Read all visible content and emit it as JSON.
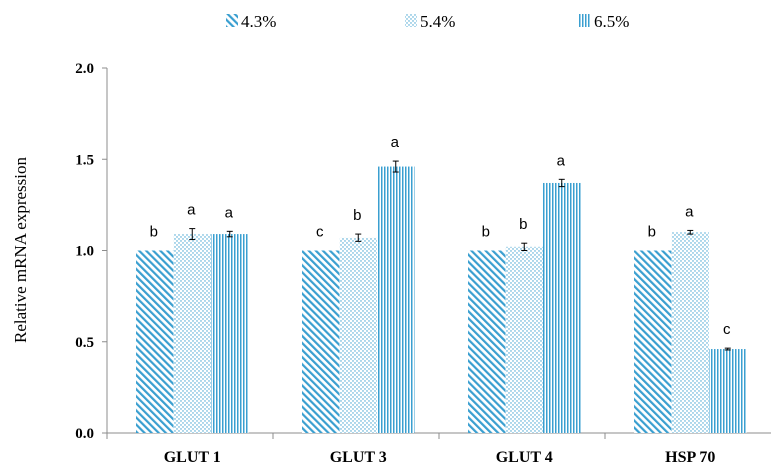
{
  "chart_data": {
    "type": "bar",
    "title": "",
    "xlabel": "",
    "ylabel": "Relative mRNA expression",
    "ylim": [
      0,
      2
    ],
    "yticks": [
      "0.0",
      "0.5",
      "1.0",
      "1.5",
      "2.0"
    ],
    "grid": false,
    "legend_position": "top",
    "categories": [
      "GLUT 1",
      "GLUT 3",
      "GLUT 4",
      "HSP 70"
    ],
    "series": [
      {
        "name": "4.3%",
        "pattern": "diagonal-stripes",
        "values": [
          1.0,
          1.0,
          1.0,
          1.0
        ],
        "errors": [
          0,
          0,
          0,
          0
        ],
        "letters": [
          "b",
          "c",
          "b",
          "b"
        ]
      },
      {
        "name": "5.4%",
        "pattern": "dots",
        "values": [
          1.09,
          1.07,
          1.02,
          1.1
        ],
        "errors": [
          0.03,
          0.02,
          0.02,
          0.01
        ],
        "letters": [
          "a",
          "b",
          "b",
          "a"
        ]
      },
      {
        "name": "6.5%",
        "pattern": "vertical-stripes",
        "values": [
          1.09,
          1.46,
          1.37,
          0.46
        ],
        "errors": [
          0.015,
          0.03,
          0.02,
          0.005
        ],
        "letters": [
          "a",
          "a",
          "a",
          "c"
        ]
      }
    ],
    "colors": {
      "bars": "#3a9fd0",
      "axis": "#8c8c8c",
      "text": "#000000"
    }
  }
}
